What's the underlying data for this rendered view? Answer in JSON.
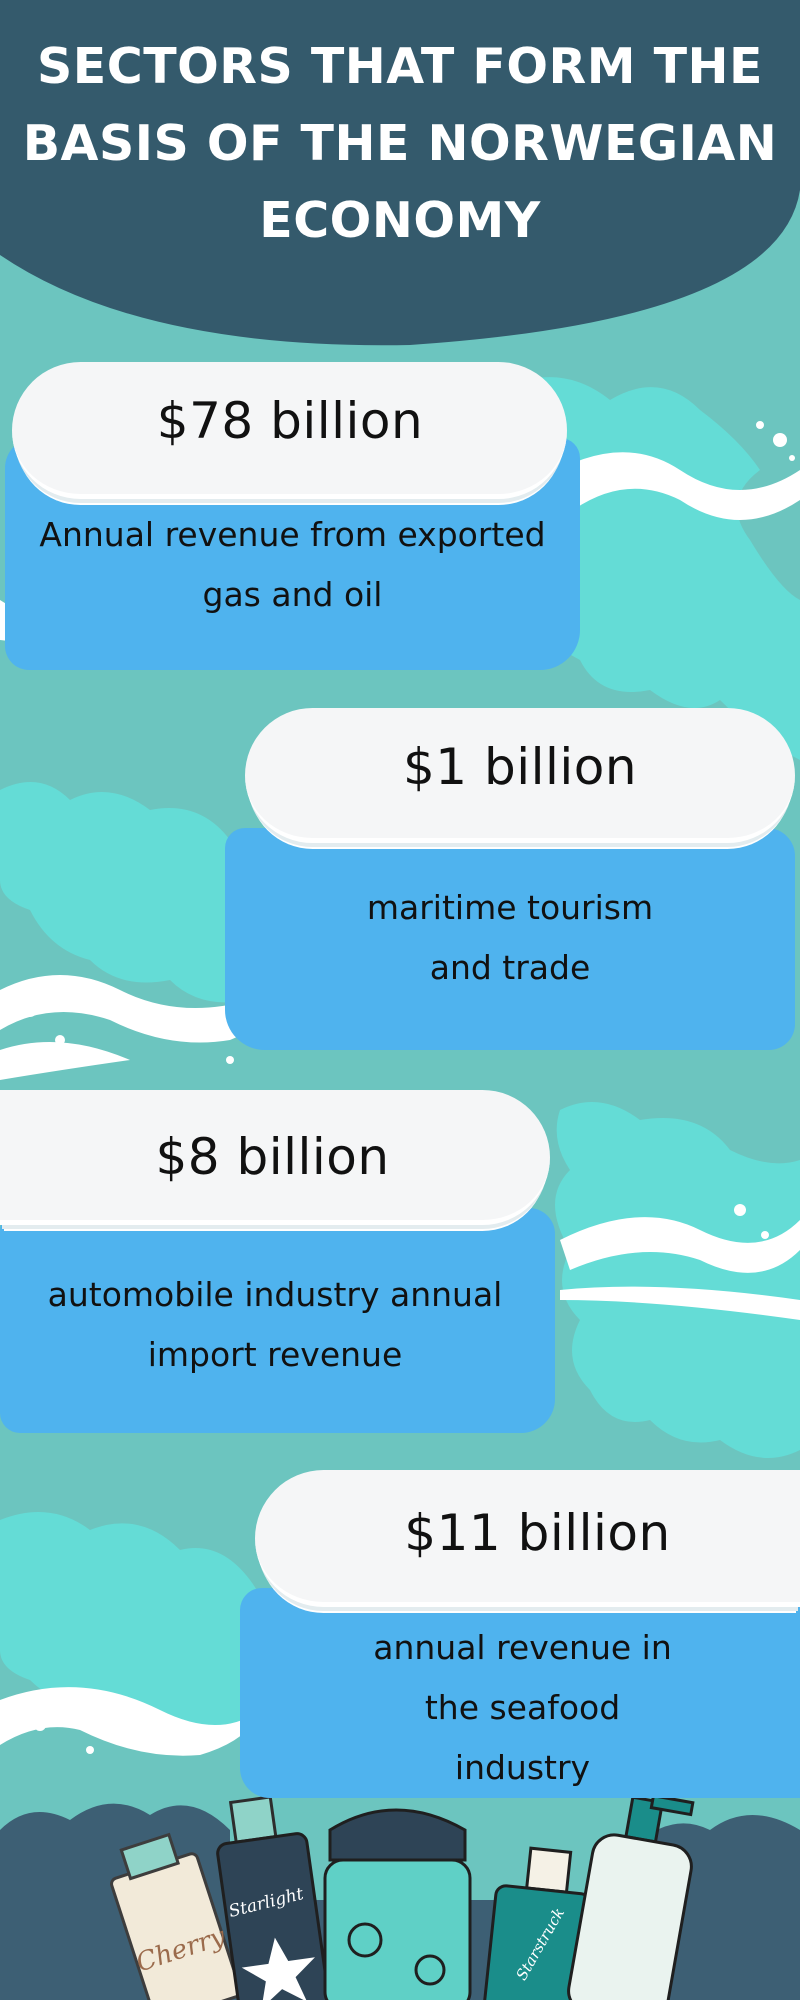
{
  "title": {
    "lines": [
      "SECTORS THAT FORM THE",
      "BASIS OF THE NORWEGIAN",
      "ECONOMY"
    ]
  },
  "cards": [
    {
      "amount": "$78 billion",
      "lines": [
        "Annual revenue from exported",
        "gas and oil"
      ]
    },
    {
      "amount": "$1 billion",
      "lines": [
        "maritime tourism",
        "and trade"
      ]
    },
    {
      "amount": "$8 billion",
      "lines": [
        "automobile industry annual",
        "import revenue"
      ]
    },
    {
      "amount": "$11 billion",
      "lines": [
        "annual revenue in",
        "the seafood",
        "industry"
      ]
    }
  ],
  "products": [
    {
      "label": "Cherry"
    },
    {
      "label": "Starlight"
    },
    {
      "label": "Starstruck"
    }
  ],
  "colors": {
    "background": "#6cc5bf",
    "header": "#345a6c",
    "map": "#64dcd6",
    "card_body": "#4fb3ee",
    "card_pill": "#f5f6f7",
    "footer_cloud": "#3d5f74"
  }
}
